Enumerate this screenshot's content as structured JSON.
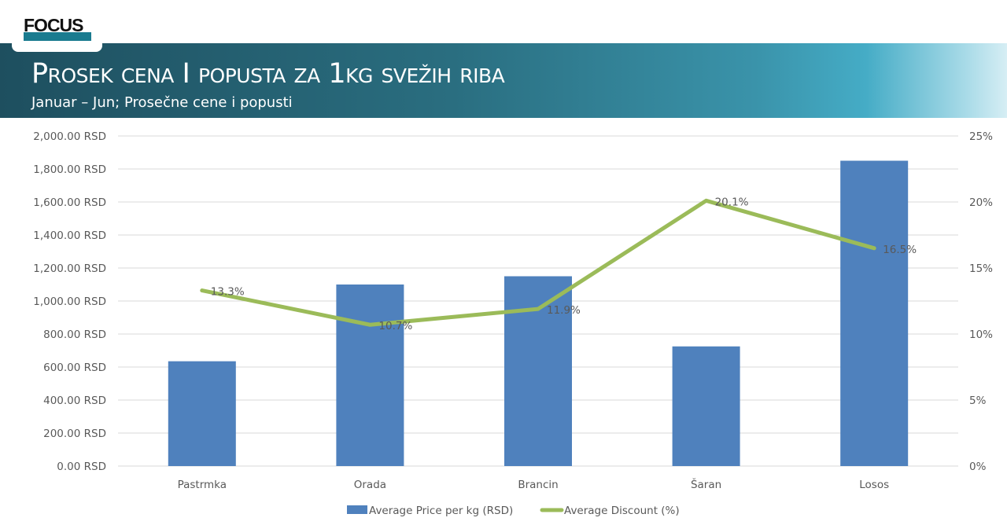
{
  "header": {
    "logo_text": "FOCUS",
    "title": "Prosek cena I popusta za 1kg svežih riba",
    "subtitle": "Januar – Jun; Prosečne cene i popusti"
  },
  "chart_data": {
    "type": "bar+line",
    "categories": [
      "Pastrmka",
      "Orada",
      "Brancin",
      "Šaran",
      "Losos"
    ],
    "series": [
      {
        "name": "Average Price per kg (RSD)",
        "type": "bar",
        "axis": "left",
        "color": "#4f81bd",
        "values": [
          635,
          1100,
          1150,
          725,
          1850
        ]
      },
      {
        "name": "Average Discount (%)",
        "type": "line",
        "axis": "right",
        "color": "#9bbb59",
        "values": [
          13.3,
          10.7,
          11.9,
          20.1,
          16.5
        ],
        "data_labels": [
          "13.3%",
          "10.7%",
          "11.9%",
          "20.1%",
          "16.5%"
        ]
      }
    ],
    "y_left": {
      "range": [
        0,
        2000
      ],
      "ticks": [
        "0.00 RSD",
        "200.00 RSD",
        "400.00 RSD",
        "600.00 RSD",
        "800.00 RSD",
        "1,000.00 RSD",
        "1,200.00 RSD",
        "1,400.00 RSD",
        "1,600.00 RSD",
        "1,800.00 RSD",
        "2,000.00 RSD"
      ]
    },
    "y_right": {
      "range": [
        0,
        25
      ],
      "ticks": [
        "0%",
        "5%",
        "10%",
        "15%",
        "20%",
        "25%"
      ]
    },
    "grid": true,
    "legend": "bottom"
  }
}
